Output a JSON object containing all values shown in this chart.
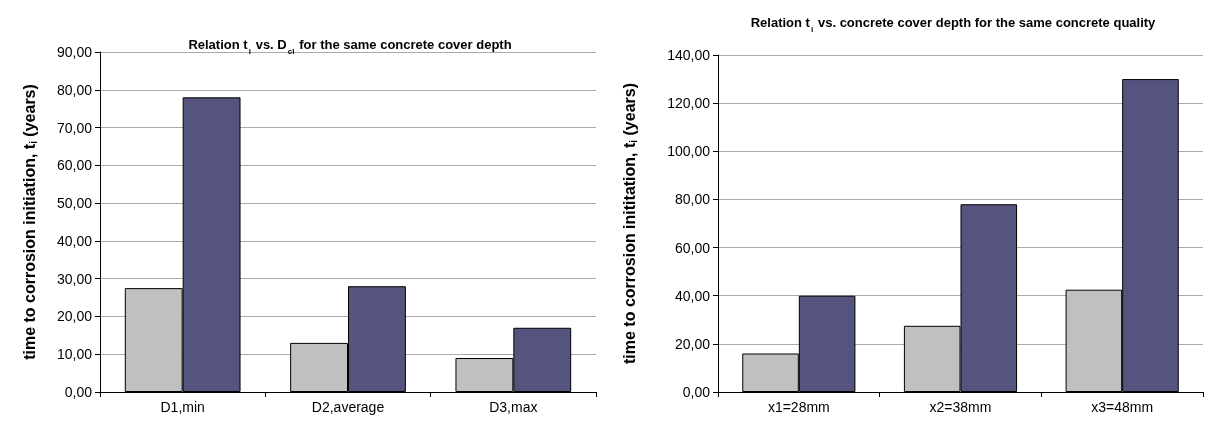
{
  "chart_data": [
    {
      "type": "bar",
      "title": "Relation t$_{i}$ vs. D$_{cl}$ for the same concrete cover depth",
      "ylabel": "time to corrosion initiation, t$_{i}$ (years)",
      "categories": [
        "D1,min",
        "D2,average",
        "D3,max"
      ],
      "series": [
        {
          "color": "#c0c0c0",
          "values": [
            27.5,
            13,
            9
          ]
        },
        {
          "color": "#55547f",
          "values": [
            78,
            28,
            17
          ]
        }
      ],
      "ylim": [
        0,
        90
      ],
      "yticks": [
        {
          "value": 0,
          "label": "0,00"
        },
        {
          "value": 10,
          "label": "10,00"
        },
        {
          "value": 20,
          "label": "20,00"
        },
        {
          "value": 30,
          "label": "30,00"
        },
        {
          "value": 40,
          "label": "40,00"
        },
        {
          "value": 50,
          "label": "50,00"
        },
        {
          "value": 60,
          "label": "60,00"
        },
        {
          "value": 70,
          "label": "70,00"
        },
        {
          "value": 80,
          "label": "80,00"
        },
        {
          "value": 90,
          "label": "90,00"
        }
      ],
      "grid": "y"
    },
    {
      "type": "bar",
      "title": "Relation t$_{i}$ vs. concrete cover depth for the same concrete quality",
      "ylabel": "time to corrosion inititation, t$_{i}$ (years)",
      "categories": [
        "x1=28mm",
        "x2=38mm",
        "x3=48mm"
      ],
      "series": [
        {
          "color": "#c0c0c0",
          "values": [
            16,
            27.5,
            42.5
          ]
        },
        {
          "color": "#55547f",
          "values": [
            40,
            78,
            130
          ]
        }
      ],
      "ylim": [
        0,
        140
      ],
      "yticks": [
        {
          "value": 0,
          "label": "0,00"
        },
        {
          "value": 20,
          "label": "20,00"
        },
        {
          "value": 40,
          "label": "40,00"
        },
        {
          "value": 60,
          "label": "60,00"
        },
        {
          "value": 80,
          "label": "80,00"
        },
        {
          "value": 100,
          "label": "100,00"
        },
        {
          "value": 120,
          "label": "120,00"
        },
        {
          "value": 140,
          "label": "140,00"
        }
      ],
      "grid": "y"
    }
  ]
}
